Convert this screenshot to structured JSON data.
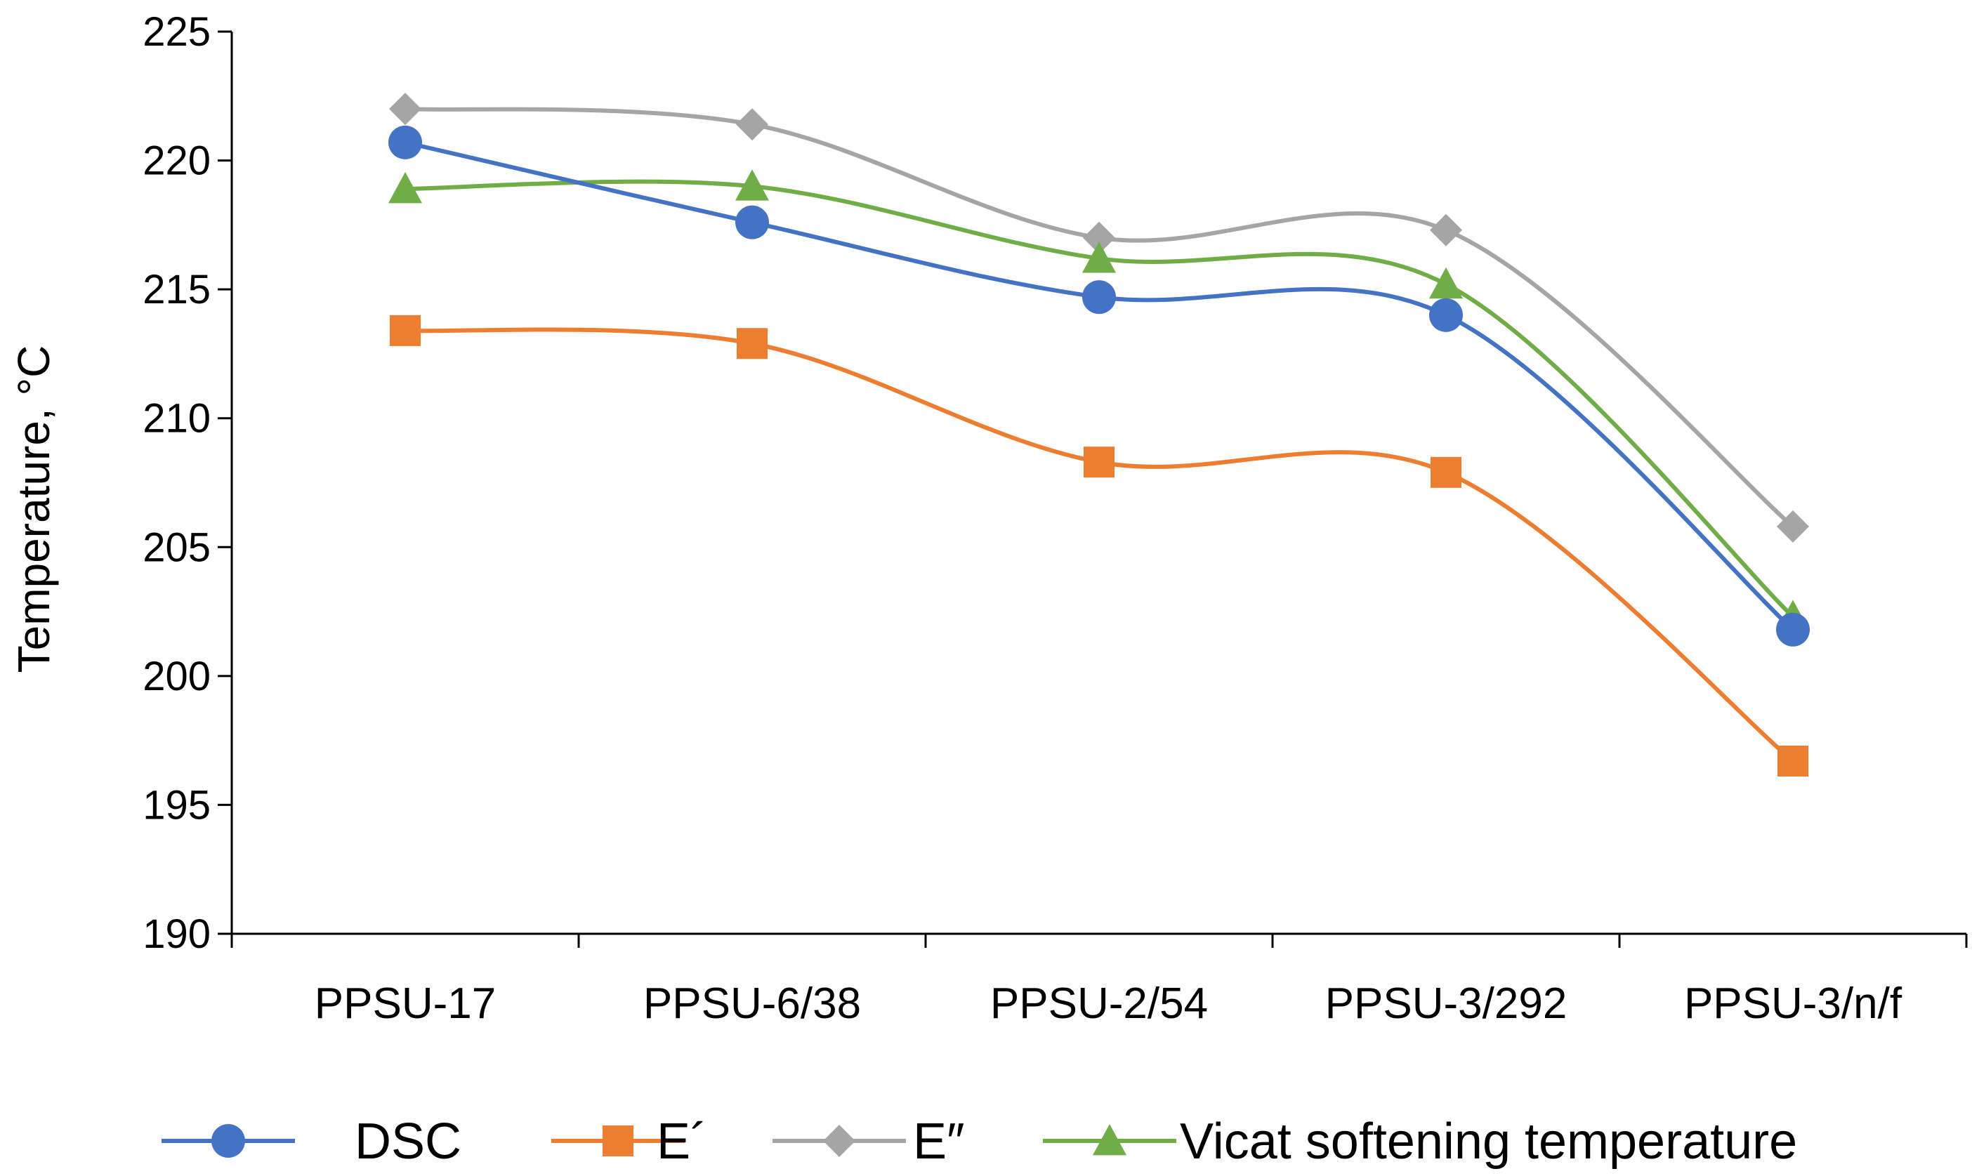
{
  "chart_data": {
    "type": "line",
    "title": "",
    "xlabel": "",
    "ylabel": "Temperature, °C",
    "ylim": [
      190,
      225
    ],
    "yticks": [
      190,
      195,
      200,
      205,
      210,
      215,
      220,
      225
    ],
    "grid": false,
    "smooth": true,
    "legend_position": "bottom",
    "categories": [
      "PPSU-17",
      "PPSU-6/38",
      "PPSU-2/54",
      "PPSU-3/292",
      "PPSU-3/n/f"
    ],
    "series": [
      {
        "name": "DSC",
        "color": "#4472C4",
        "marker": "circle",
        "values": [
          220.7,
          217.6,
          214.7,
          214.0,
          201.8
        ]
      },
      {
        "name": "E´",
        "color": "#ED7D31",
        "marker": "square",
        "values": [
          213.4,
          212.9,
          208.3,
          207.9,
          196.7
        ]
      },
      {
        "name": "E″",
        "color": "#A5A5A5",
        "marker": "diamond",
        "values": [
          222.0,
          221.4,
          217.0,
          217.3,
          205.8
        ]
      },
      {
        "name": "Vicat softening temperature",
        "color": "#70AD47",
        "marker": "triangle",
        "values": [
          218.9,
          219.0,
          216.2,
          215.2,
          202.3
        ]
      }
    ]
  }
}
